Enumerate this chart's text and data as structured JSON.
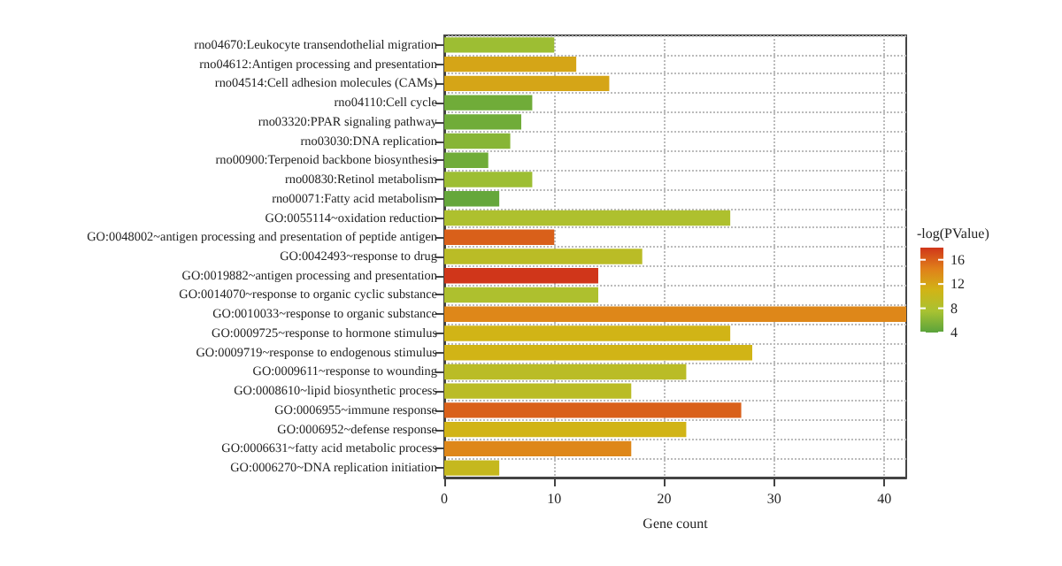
{
  "chart_data": {
    "type": "bar",
    "orientation": "horizontal",
    "xlabel": "Gene count",
    "clabel": "-log(PValue)",
    "categories": [
      "rno04670:Leukocyte transendothelial migration",
      "rno04612:Antigen processing and presentation",
      "rno04514:Cell adhesion molecules (CAMs)",
      "rno04110:Cell cycle",
      "rno03320:PPAR signaling pathway",
      "rno03030:DNA replication",
      "rno00900:Terpenoid backbone biosynthesis",
      "rno00830:Retinol metabolism",
      "rno00071:Fatty acid metabolism",
      "GO:0055114~oxidation reduction",
      "GO:0048002~antigen processing and presentation of peptide antigen",
      "GO:0042493~response to drug",
      "GO:0019882~antigen processing and presentation",
      "GO:0014070~response to organic cyclic substance",
      "GO:0010033~response to organic substance",
      "GO:0009725~response to hormone stimulus",
      "GO:0009719~response to endogenous stimulus",
      "GO:0009611~response to wounding",
      "GO:0008610~lipid biosynthetic process",
      "GO:0006955~immune response",
      "GO:0006952~defense response",
      "GO:0006631~fatty acid metabolic process",
      "GO:0006270~DNA replication initiation"
    ],
    "values": [
      10,
      12,
      15,
      8,
      7,
      6,
      4,
      8,
      5,
      26,
      10,
      18,
      14,
      14,
      42,
      26,
      28,
      22,
      17,
      27,
      22,
      17,
      5
    ],
    "cvalues": [
      7,
      12,
      12,
      5,
      5,
      6,
      5,
      7,
      4.5,
      8,
      16,
      9,
      18,
      8,
      14,
      11,
      11,
      9,
      9,
      16,
      11,
      14,
      10
    ],
    "clim": [
      4,
      18
    ],
    "cticks": [
      4,
      8,
      12,
      16
    ],
    "xlim": [
      0,
      42
    ],
    "xticks": [
      0,
      10,
      20,
      30,
      40
    ],
    "grid": true
  }
}
